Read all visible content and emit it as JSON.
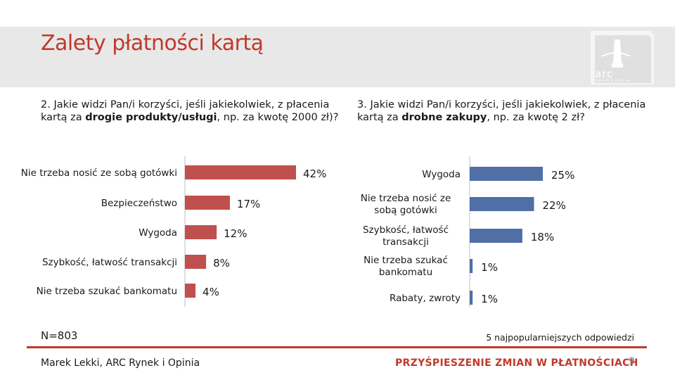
{
  "slide": {
    "title": "Zalety płatności kartą",
    "logo_text": "arc",
    "logo_sub": "rynek i opinia",
    "question1": {
      "prefix": "2. Jakie widzi Pan/i korzyści, jeśli jakiekolwiek, z płacenia kartą za ",
      "bold": "drogie produkty/usługi",
      "suffix": ", np. za kwotę 2000 zł)?"
    },
    "question2": {
      "prefix": "3. Jakie widzi Pan/i korzyści, jeśli jakiekolwiek, z płacenia kartą za ",
      "bold": "drobne zakupy",
      "suffix": ", np. za kwotę 2 zł?"
    },
    "n_label": "N=803",
    "top_label": "5 najpopularniejszych odpowiedzi",
    "footer_left": "Marek Lekki, ARC Rynek i Opinia",
    "footer_right": "PRZYŚPIESZENIE ZMIAN W PŁATNOŚCIACH",
    "page_number": "9"
  },
  "colors": {
    "accent": "#c0392b",
    "left_bar": "#c0504d",
    "right_bar": "#4f6fa6",
    "header_bg": "#e8e8e8"
  },
  "chart_data": [
    {
      "type": "bar",
      "orientation": "horizontal",
      "categories": [
        "Nie trzeba nosić ze sobą gotówki",
        "Bezpieczeństwo",
        "Wygoda",
        "Szybkość, łatwość transakcji",
        "Nie trzeba szukać bankomatu"
      ],
      "values": [
        42,
        17,
        12,
        8,
        4
      ],
      "value_labels": [
        "42%",
        "17%",
        "12%",
        "8%",
        "4%"
      ],
      "unit": "%",
      "xlim": [
        0,
        42
      ]
    },
    {
      "type": "bar",
      "orientation": "horizontal",
      "categories": [
        "Wygoda",
        "Nie trzeba nosić ze sobą gotówki",
        "Szybkość, łatwość transakcji",
        "Nie trzeba szukać bankomatu",
        "Rabaty, zwroty"
      ],
      "values": [
        25,
        22,
        18,
        1,
        1
      ],
      "value_labels": [
        "25%",
        "22%",
        "18%",
        "1%",
        "1%"
      ],
      "unit": "%",
      "xlim": [
        0,
        25
      ]
    }
  ]
}
